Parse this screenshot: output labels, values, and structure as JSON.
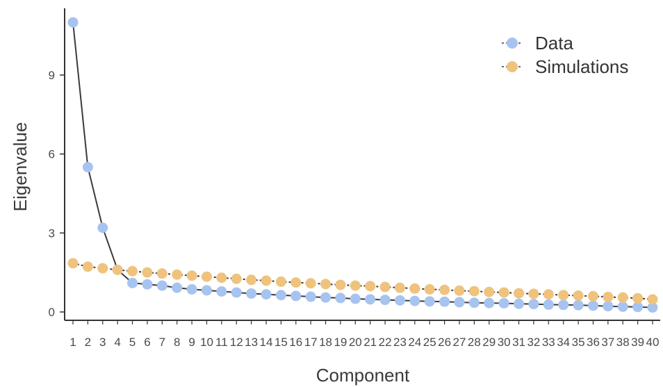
{
  "chart_data": {
    "type": "line",
    "xlabel": "Component",
    "ylabel": "Eigenvalue",
    "xlim": [
      1,
      40
    ],
    "ylim": [
      -0.3,
      11.2
    ],
    "yticks": [
      0,
      3,
      6,
      9
    ],
    "x": [
      1,
      2,
      3,
      4,
      5,
      6,
      7,
      8,
      9,
      10,
      11,
      12,
      13,
      14,
      15,
      16,
      17,
      18,
      19,
      20,
      21,
      22,
      23,
      24,
      25,
      26,
      27,
      28,
      29,
      30,
      31,
      32,
      33,
      34,
      35,
      36,
      37,
      38,
      39,
      40
    ],
    "series": [
      {
        "name": "Data",
        "color": "#a7c4f0",
        "values": [
          11.0,
          5.5,
          3.2,
          1.6,
          1.1,
          1.05,
          1.0,
          0.92,
          0.86,
          0.82,
          0.78,
          0.74,
          0.7,
          0.67,
          0.64,
          0.61,
          0.58,
          0.55,
          0.53,
          0.5,
          0.48,
          0.46,
          0.44,
          0.42,
          0.4,
          0.39,
          0.37,
          0.35,
          0.34,
          0.33,
          0.31,
          0.3,
          0.28,
          0.27,
          0.26,
          0.24,
          0.22,
          0.2,
          0.19,
          0.17
        ]
      },
      {
        "name": "Simulations",
        "color": "#efc37e",
        "values": [
          1.85,
          1.72,
          1.66,
          1.6,
          1.55,
          1.5,
          1.46,
          1.42,
          1.38,
          1.34,
          1.3,
          1.26,
          1.22,
          1.19,
          1.15,
          1.12,
          1.09,
          1.06,
          1.03,
          1.0,
          0.98,
          0.95,
          0.92,
          0.89,
          0.86,
          0.84,
          0.81,
          0.79,
          0.76,
          0.74,
          0.71,
          0.69,
          0.67,
          0.64,
          0.62,
          0.6,
          0.57,
          0.55,
          0.52,
          0.48
        ]
      }
    ],
    "legend": "top-right",
    "line_color": "#3a3a3a"
  }
}
